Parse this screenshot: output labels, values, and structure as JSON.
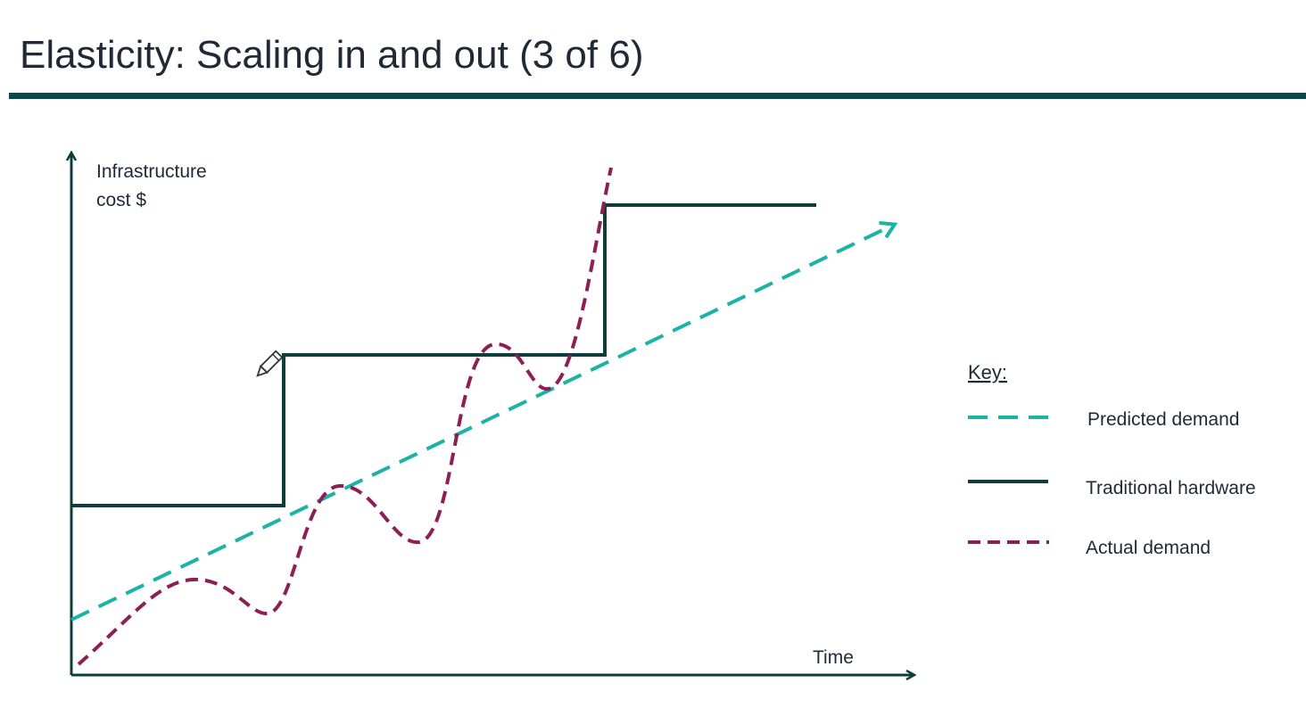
{
  "header": {
    "title": "Elasticity: Scaling in and out (3 of 6)"
  },
  "diagram": {
    "y_axis_label": [
      "Infrastructure",
      "cost $"
    ],
    "x_axis_label": "Time"
  },
  "legend": {
    "title": "Key:",
    "items": [
      "Predicted demand",
      "Traditional hardware",
      "Actual demand"
    ]
  }
}
